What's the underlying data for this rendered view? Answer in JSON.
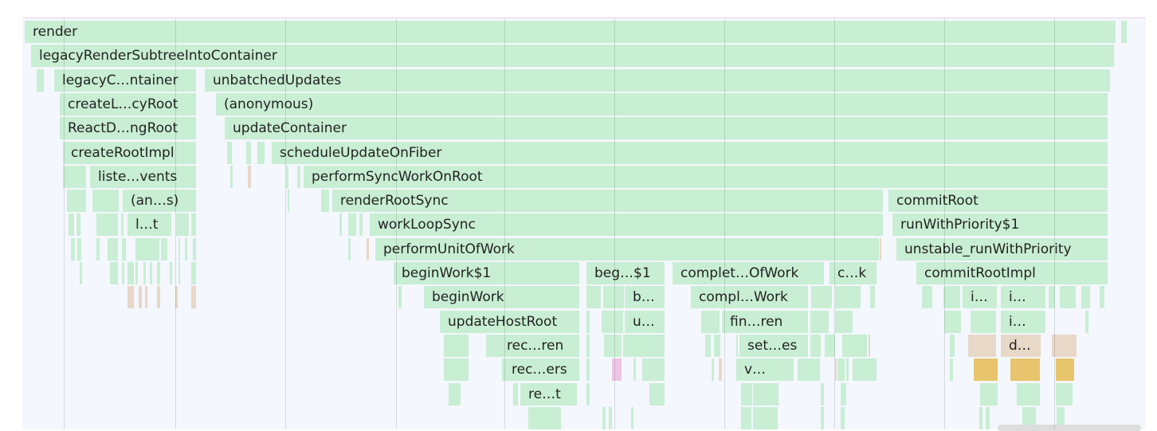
{
  "flame_chart": {
    "frames": [
      {
        "label": "render"
      },
      {
        "label": "legacyRenderSubtreeIntoContainer"
      },
      {
        "label": "legacyC…ntainer"
      },
      {
        "label": "unbatchedUpdates"
      },
      {
        "label": "createL…cyRoot"
      },
      {
        "label": "(anonymous)"
      },
      {
        "label": "ReactD…ngRoot"
      },
      {
        "label": "updateContainer"
      },
      {
        "label": "createRootImpl"
      },
      {
        "label": "scheduleUpdateOnFiber"
      },
      {
        "label": "liste…vents"
      },
      {
        "label": "performSyncWorkOnRoot"
      },
      {
        "label": "(an…s)"
      },
      {
        "label": "renderRootSync"
      },
      {
        "label": "commitRoot"
      },
      {
        "label": "l…t"
      },
      {
        "label": "workLoopSync"
      },
      {
        "label": "runWithPriority$1"
      },
      {
        "label": "performUnitOfWork"
      },
      {
        "label": "unstable_runWithPriority"
      },
      {
        "label": "beginWork$1"
      },
      {
        "label": "beg…$1"
      },
      {
        "label": "complet…OfWork"
      },
      {
        "label": "c…k"
      },
      {
        "label": "commitRootImpl"
      },
      {
        "label": "beginWork"
      },
      {
        "label": "b…"
      },
      {
        "label": "compl…Work"
      },
      {
        "label": "i…"
      },
      {
        "label": "i…"
      },
      {
        "label": "updateHostRoot"
      },
      {
        "label": "u…"
      },
      {
        "label": "fin…ren"
      },
      {
        "label": "i…"
      },
      {
        "label": "rec…ren"
      },
      {
        "label": "set…es"
      },
      {
        "label": "d…"
      },
      {
        "label": "rec…ers"
      },
      {
        "label": "v…"
      },
      {
        "label": "re…t"
      }
    ],
    "colors": {
      "default": "#c8eed3",
      "tan": "#e8d8c8",
      "yellow": "#e8c46c",
      "pink": "#ecc4e4",
      "background": "#f4f7fd"
    }
  }
}
